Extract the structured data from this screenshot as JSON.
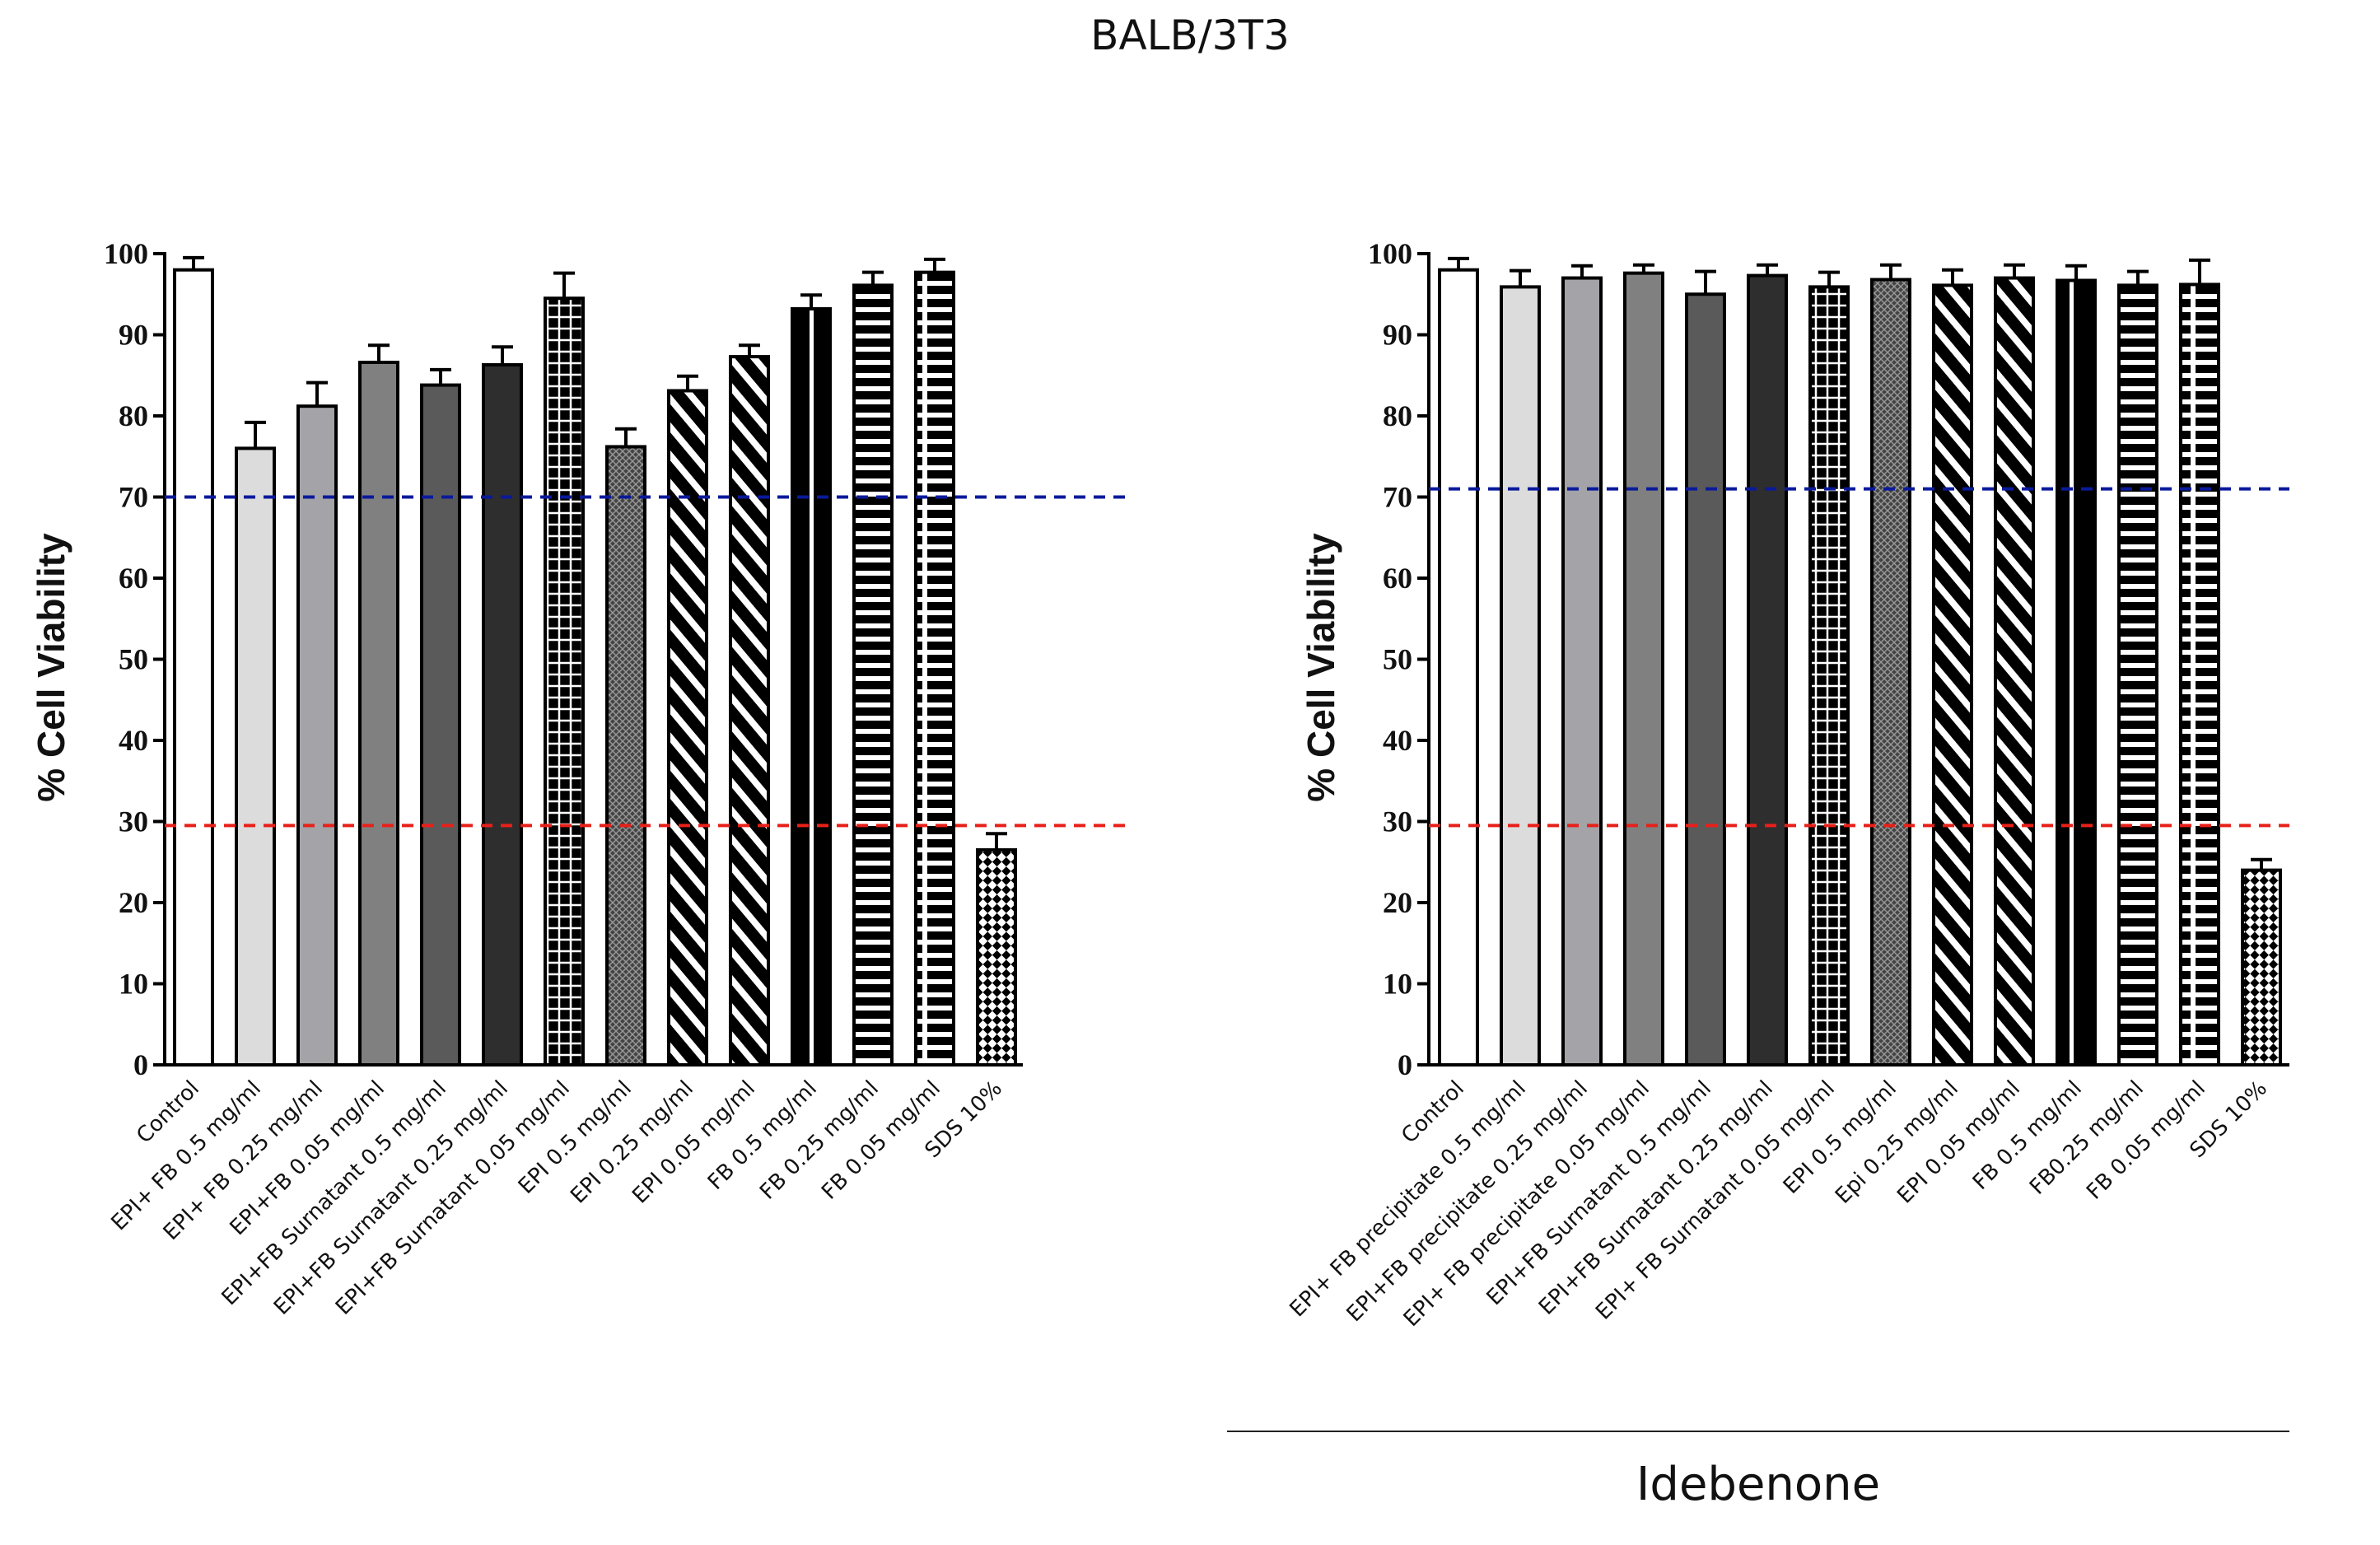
{
  "figure_title": "BALB/3T3",
  "group_label": "Idebenone",
  "colors": {
    "threshold_upper": "#0a1a9a",
    "threshold_lower": "#e8201a",
    "bar_edge": "#000000"
  },
  "chart_data": [
    {
      "type": "bar",
      "title": "",
      "xlabel": "",
      "ylabel": "% Cell Viability",
      "ylim": [
        0,
        100
      ],
      "yticks": [
        0,
        10,
        20,
        30,
        40,
        50,
        60,
        70,
        80,
        90,
        100
      ],
      "thresholds": [
        70,
        29.5
      ],
      "categories": [
        "Control",
        "EPI+ FB 0.5 mg/ml",
        "EPI+ FB  0.25 mg/ml",
        "EPI+FB 0.05 mg/ml",
        "EPI+FB Surnatant 0.5 mg/ml",
        "EPI+FB Surnatant 0.25 mg/ml",
        "EPI+FB Surnatant 0.05 mg/ml",
        "EPI 0.5 mg/ml",
        "EPI 0.25 mg/ml",
        "EPI 0.05 mg/ml",
        "FB 0.5 mg/ml",
        "FB 0.25 mg/ml",
        "FB 0.05 mg/ml",
        "SDS 10%"
      ],
      "values": [
        98,
        76,
        81.2,
        86.6,
        83.8,
        86.3,
        94.5,
        76.2,
        83.1,
        87.3,
        93.2,
        96.1,
        97.7,
        26.5
      ],
      "errors": [
        1.5,
        3.2,
        2.9,
        2.1,
        1.9,
        2.2,
        3.1,
        2.2,
        1.8,
        1.4,
        1.7,
        1.6,
        1.6,
        2.0
      ],
      "patterns": [
        "white",
        "light",
        "mid",
        "midDark",
        "dark",
        "darker",
        "grid",
        "crosshatch",
        "diagonal",
        "diagonal",
        "vbars",
        "hstripes",
        "hstripesV",
        "checker"
      ]
    },
    {
      "type": "bar",
      "title": "",
      "xlabel": "",
      "ylabel": "% Cell Viability",
      "ylim": [
        0,
        100
      ],
      "yticks": [
        0,
        10,
        20,
        30,
        40,
        50,
        60,
        70,
        80,
        90,
        100
      ],
      "thresholds": [
        71,
        29.5
      ],
      "categories": [
        "Control",
        "EPI+ FB precipitate 0.5 mg/ml",
        "EPI+FB precipitate 0.25 mg/ml",
        "EPI+ FB precipitate 0.05 mg/ml",
        "EPI+FB Surnatant 0.5 mg/ml",
        "EPI+FB Surnatant 0.25 mg/ml",
        "EPI+ FB Surnatant 0.05 mg/ml",
        "EPI 0.5 mg/ml",
        "Epi 0.25 mg/ml",
        "EPI 0.05 mg/ml",
        "FB 0.5 mg/ml",
        "FB0.25 mg/ml",
        "FB 0.05 mg/ml",
        "SDS 10%"
      ],
      "values": [
        98,
        95.9,
        97,
        97.6,
        95,
        97.3,
        95.9,
        96.8,
        96.1,
        97,
        96.7,
        96.1,
        96.2,
        24
      ],
      "errors": [
        1.4,
        2.0,
        1.5,
        1.0,
        2.8,
        1.3,
        1.8,
        1.8,
        1.9,
        1.6,
        1.8,
        1.7,
        3.0,
        1.3
      ],
      "patterns": [
        "white",
        "light",
        "mid",
        "midDark",
        "dark",
        "darker",
        "grid",
        "crosshatch",
        "diagonal",
        "diagonal",
        "vbars",
        "hstripes",
        "hstripesV",
        "checker"
      ]
    }
  ]
}
